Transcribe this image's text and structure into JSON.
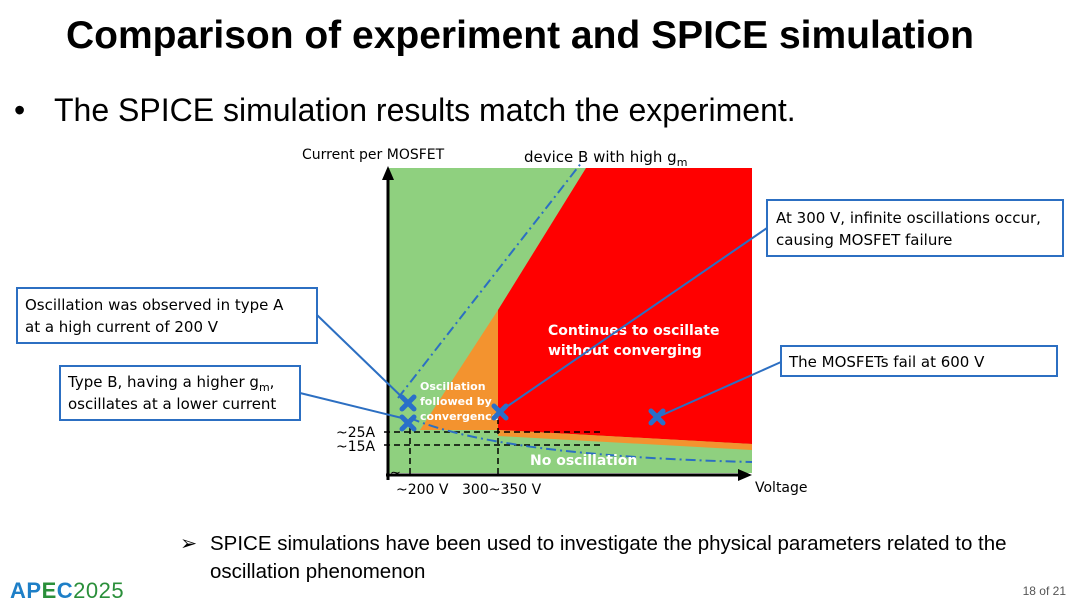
{
  "title": "Comparison of experiment and SPICE simulation",
  "bullet": {
    "symbol": "•",
    "text": "The SPICE simulation results match the experiment."
  },
  "diagram": {
    "y_axis_label": "Current per MOSFET",
    "x_axis_label": "Voltage",
    "device_b_label": "device B with high g",
    "device_b_sub": "m",
    "y_tick_25": "~25A",
    "y_tick_15": "~15A",
    "axis_break": "≈",
    "x_tick_200": "~200 V",
    "x_tick_300": "300~350 V",
    "region_red_line1": "Continues to oscillate",
    "region_red_line2": "without converging",
    "region_orange_line1": "Oscillation",
    "region_orange_line2": "followed by",
    "region_orange_line3": "convergence",
    "region_green_bottom": "No oscillation",
    "callout_300v_line1": "At 300 V, infinite oscillations occur,",
    "callout_300v_line2": "causing MOSFET failure",
    "callout_typeA_line1": "Oscillation was observed in type A",
    "callout_typeA_line2": "at a high current of 200 V",
    "callout_typeB_line1_a": "Type B, having a higher g",
    "callout_typeB_line1_sub": "m",
    "callout_typeB_line1_b": ",",
    "callout_typeB_line2": "oscillates at a lower current",
    "callout_600v": "The MOSFETs fail at 600 V",
    "colors": {
      "green": "#8fd07f",
      "orange": "#f3932f",
      "red": "#ff0000",
      "blue": "#2c6fc2",
      "marker": "#2a6fc9"
    }
  },
  "note": {
    "symbol": "➢",
    "text": "SPICE simulations have been used to investigate the physical parameters related to the oscillation phenomenon"
  },
  "logo": {
    "text_a": "AP",
    "text_b": "E",
    "text_c": "C",
    "year": "2025",
    "color": "#2a8f3a"
  },
  "page": "18 of 21"
}
